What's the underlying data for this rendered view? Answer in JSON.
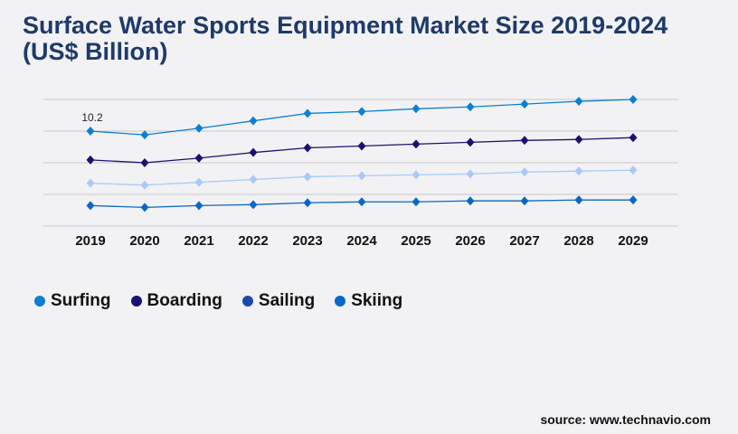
{
  "title": "Surface Water Sports Equipment Market Size 2019-2024 (US$ Billion)",
  "source": "source: www.technavio.com",
  "chart_data": {
    "type": "line",
    "title": "Surface Water Sports Equipment Market Size 2019-2024 (US$ Billion)",
    "categories": [
      "2019",
      "2020",
      "2021",
      "2022",
      "2023",
      "2024",
      "2025",
      "2026",
      "2027",
      "2028",
      "2029"
    ],
    "ylim": [
      0,
      13.6
    ],
    "grid": true,
    "legend_position": "bottom-left",
    "annotations": [
      {
        "series": "Surfing",
        "category": "2019",
        "text": "10.2"
      }
    ],
    "series": [
      {
        "name": "Surfing",
        "color": "#0a7fd4",
        "legend_color": "#0a7fd4",
        "values": [
          10.2,
          9.8,
          10.5,
          11.3,
          12.1,
          12.3,
          12.6,
          12.8,
          13.1,
          13.4,
          13.6
        ]
      },
      {
        "name": "Boarding",
        "color": "#1a1170",
        "legend_color": "#1a1170",
        "values": [
          7.1,
          6.8,
          7.3,
          7.9,
          8.4,
          8.6,
          8.8,
          9.0,
          9.2,
          9.3,
          9.5
        ]
      },
      {
        "name": "Sailing",
        "color": "#a9c9f8",
        "legend_color": "#1a4aa8",
        "values": [
          4.6,
          4.4,
          4.7,
          5.0,
          5.3,
          5.4,
          5.5,
          5.6,
          5.8,
          5.9,
          6.0
        ]
      },
      {
        "name": "Skiing",
        "color": "#0a66c8",
        "legend_color": "#0a66c8",
        "values": [
          2.2,
          2.0,
          2.2,
          2.3,
          2.5,
          2.6,
          2.6,
          2.7,
          2.7,
          2.8,
          2.8
        ]
      }
    ]
  }
}
